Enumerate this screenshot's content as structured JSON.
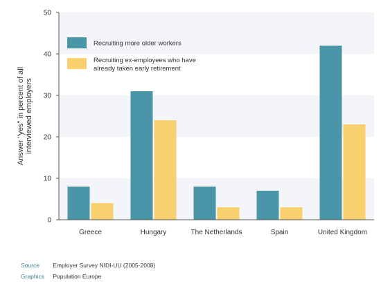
{
  "chart_data": {
    "type": "bar",
    "categories": [
      "Greece",
      "Hungary",
      "The Netherlands",
      "Spain",
      "United Kingdom"
    ],
    "series": [
      {
        "name": "Recruiting more older workers",
        "values": [
          8,
          31,
          8,
          7,
          42
        ],
        "color": "#4b95a8"
      },
      {
        "name": "Recruiting ex-employees who have already taken early retirement",
        "legend_lines": [
          "Recruiting ex-employees who have",
          "already taken early retirement"
        ],
        "values": [
          4,
          24,
          3,
          3,
          23
        ],
        "color": "#f8d06e"
      }
    ],
    "ylabel_lines": [
      "Answer \"yes\" in percent of all",
      "interviewed employers"
    ],
    "ylim": [
      0,
      50
    ],
    "yticks": [
      0,
      10,
      20,
      30,
      40,
      50
    ],
    "grid": "alternating horizontal bands",
    "band_color": "#f3f5f9",
    "legend_position": "top-left"
  },
  "footer": {
    "source_label": "Source",
    "source_text": "Employer Survey NIDI-UU (2005-2008)",
    "graphics_label": "Graphics",
    "graphics_text": "Population Europe"
  },
  "colors": {
    "accent": "#3b7f96"
  }
}
